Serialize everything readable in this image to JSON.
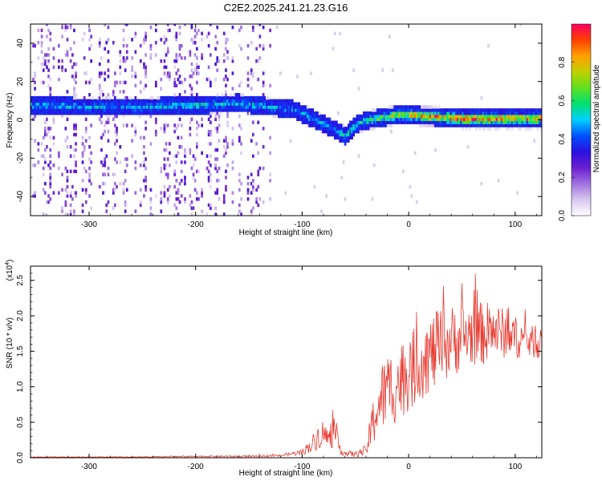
{
  "title": "C2E2.2025.241.21.23.G16",
  "chart_data": [
    {
      "type": "heatmap",
      "name": "spectrogram",
      "xlabel": "Height of straight line (km)",
      "ylabel": "Frequency (Hz)",
      "xlim": [
        -355,
        125
      ],
      "ylim": [
        -50,
        50
      ],
      "xticks": [
        -300,
        -200,
        -100,
        0,
        100
      ],
      "yticks": [
        -40,
        -20,
        0,
        20,
        40
      ],
      "colorbar": {
        "label": "Normalized spectral amplitude",
        "range": [
          0.0,
          1.0
        ],
        "ticks": [
          0.0,
          0.2,
          0.4,
          0.6,
          0.8
        ],
        "tick_labels": [
          "0.0",
          "0.2",
          "0.4",
          "0.6",
          "0.8"
        ],
        "colormap": [
          "#ffffff",
          "#d8c8f0",
          "#a070e0",
          "#6a1fd0",
          "#2a10e0",
          "#0050ff",
          "#00d0ff",
          "#00e070",
          "#60e020",
          "#c0d000",
          "#ffa000",
          "#ff4000",
          "#ff0060"
        ]
      },
      "ridge": {
        "description": "dominant frequency vs height",
        "x": [
          -355,
          -300,
          -250,
          -200,
          -160,
          -130,
          -110,
          -95,
          -80,
          -70,
          -60,
          -50,
          -40,
          -30,
          -20,
          -10,
          0,
          20,
          50,
          80,
          100,
          125
        ],
        "y": [
          7,
          6,
          6,
          7,
          8,
          6,
          5,
          1,
          -3,
          -6,
          -9,
          -3,
          -1,
          0,
          1,
          2,
          2,
          1,
          0,
          0,
          0,
          0
        ],
        "amplitude": [
          0.5,
          0.5,
          0.5,
          0.55,
          0.55,
          0.5,
          0.45,
          0.5,
          0.5,
          0.5,
          0.55,
          0.6,
          0.6,
          0.65,
          0.7,
          0.75,
          0.8,
          0.85,
          0.9,
          0.9,
          0.85,
          0.85
        ]
      },
      "noise_background": {
        "x_extent": [
          -355,
          -125
        ],
        "typical_amplitude": 0.15
      }
    },
    {
      "type": "line",
      "name": "snr",
      "xlabel": "Height of straight line (km)",
      "ylabel": "SNR (10 * v/v)",
      "y_multiplier_label": "(x10",
      "y_multiplier_exp": "4",
      "y_multiplier_close": ")",
      "xlim": [
        -355,
        125
      ],
      "ylim": [
        0.0,
        2.7
      ],
      "xticks": [
        -300,
        -200,
        -100,
        0,
        100
      ],
      "yticks": [
        0.0,
        0.5,
        1.0,
        1.5,
        2.0,
        2.5
      ],
      "ytick_labels": [
        "0.0",
        "0.5",
        "1.0",
        "1.5",
        "2.0",
        "2.5"
      ],
      "color": "#e83a30",
      "series": [
        {
          "name": "SNR",
          "x": [
            -355,
            -300,
            -250,
            -200,
            -150,
            -120,
            -100,
            -90,
            -85,
            -80,
            -75,
            -70,
            -65,
            -60,
            -50,
            -40,
            -35,
            -30,
            -25,
            -20,
            -10,
            0,
            10,
            20,
            30,
            40,
            50,
            60,
            70,
            80,
            90,
            100,
            110,
            125
          ],
          "y": [
            0.01,
            0.01,
            0.01,
            0.02,
            0.02,
            0.03,
            0.08,
            0.2,
            0.3,
            0.35,
            0.25,
            0.35,
            0.15,
            0.06,
            0.05,
            0.1,
            0.4,
            0.7,
            0.85,
            0.95,
            1.05,
            1.2,
            1.35,
            1.45,
            1.55,
            1.65,
            1.7,
            1.75,
            1.75,
            1.8,
            1.75,
            1.7,
            1.65,
            1.6
          ],
          "spread": [
            0.005,
            0.005,
            0.005,
            0.01,
            0.01,
            0.015,
            0.04,
            0.12,
            0.18,
            0.2,
            0.15,
            0.2,
            0.1,
            0.04,
            0.04,
            0.08,
            0.3,
            0.45,
            0.5,
            0.55,
            0.55,
            0.55,
            0.55,
            0.55,
            0.55,
            0.5,
            0.5,
            0.45,
            0.45,
            0.4,
            0.35,
            0.3,
            0.25,
            0.2
          ]
        }
      ]
    }
  ]
}
